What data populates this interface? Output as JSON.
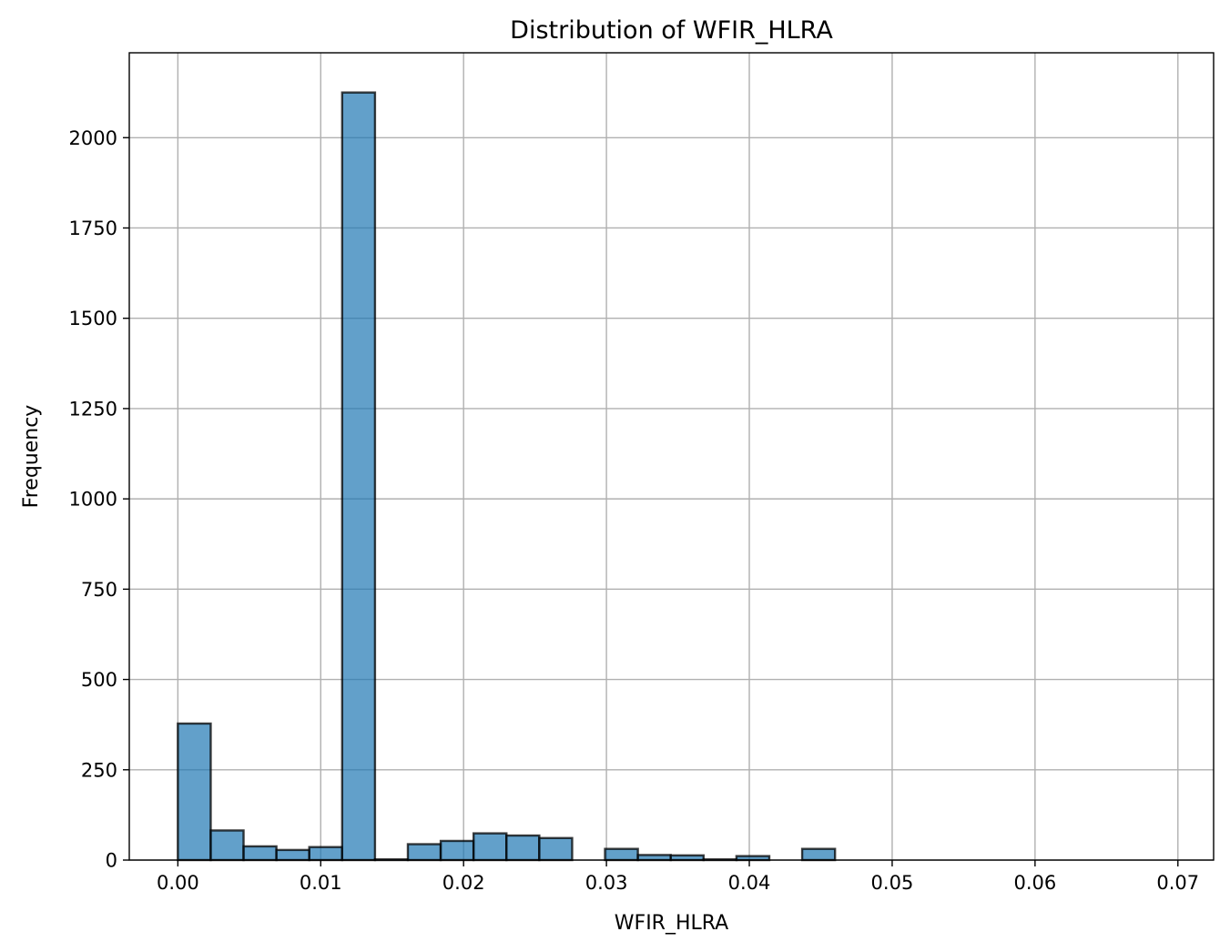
{
  "chart_data": {
    "type": "bar",
    "title": "Distribution of WFIR_HLRA",
    "xlabel": "WFIR_HLRA",
    "ylabel": "Frequency",
    "xlim": [
      -0.0034,
      0.0725
    ],
    "ylim": [
      0,
      2235
    ],
    "grid": true,
    "colors": {
      "bar_fill": "#1f77b4",
      "bar_edge": "#000000",
      "grid": "#b0b0b0"
    },
    "xticks": [
      {
        "value": 0.0,
        "label": "0.00"
      },
      {
        "value": 0.01,
        "label": "0.01"
      },
      {
        "value": 0.02,
        "label": "0.02"
      },
      {
        "value": 0.03,
        "label": "0.03"
      },
      {
        "value": 0.04,
        "label": "0.04"
      },
      {
        "value": 0.05,
        "label": "0.05"
      },
      {
        "value": 0.06,
        "label": "0.06"
      },
      {
        "value": 0.07,
        "label": "0.07"
      }
    ],
    "yticks": [
      {
        "value": 0,
        "label": "0"
      },
      {
        "value": 250,
        "label": "250"
      },
      {
        "value": 500,
        "label": "500"
      },
      {
        "value": 750,
        "label": "750"
      },
      {
        "value": 1000,
        "label": "1000"
      },
      {
        "value": 1250,
        "label": "1250"
      },
      {
        "value": 1500,
        "label": "1500"
      },
      {
        "value": 1750,
        "label": "1750"
      },
      {
        "value": 2000,
        "label": "2000"
      }
    ],
    "bins": [
      {
        "x0": 0.0,
        "x1": 0.0023,
        "count": 378
      },
      {
        "x0": 0.0023,
        "x1": 0.0046,
        "count": 82
      },
      {
        "x0": 0.0046,
        "x1": 0.0069,
        "count": 38
      },
      {
        "x0": 0.0069,
        "x1": 0.0092,
        "count": 28
      },
      {
        "x0": 0.0092,
        "x1": 0.0115,
        "count": 36
      },
      {
        "x0": 0.0115,
        "x1": 0.0138,
        "count": 2125
      },
      {
        "x0": 0.0138,
        "x1": 0.0161,
        "count": 2
      },
      {
        "x0": 0.0161,
        "x1": 0.0184,
        "count": 44
      },
      {
        "x0": 0.0184,
        "x1": 0.0207,
        "count": 53
      },
      {
        "x0": 0.0207,
        "x1": 0.023,
        "count": 74
      },
      {
        "x0": 0.023,
        "x1": 0.0253,
        "count": 68
      },
      {
        "x0": 0.0253,
        "x1": 0.0276,
        "count": 61
      },
      {
        "x0": 0.0276,
        "x1": 0.0299,
        "count": 0
      },
      {
        "x0": 0.0299,
        "x1": 0.0322,
        "count": 31
      },
      {
        "x0": 0.0322,
        "x1": 0.0345,
        "count": 14
      },
      {
        "x0": 0.0345,
        "x1": 0.0368,
        "count": 13
      },
      {
        "x0": 0.0368,
        "x1": 0.0391,
        "count": 2
      },
      {
        "x0": 0.0391,
        "x1": 0.0414,
        "count": 11
      },
      {
        "x0": 0.0414,
        "x1": 0.0437,
        "count": 0
      },
      {
        "x0": 0.0437,
        "x1": 0.046,
        "count": 31
      }
    ]
  }
}
